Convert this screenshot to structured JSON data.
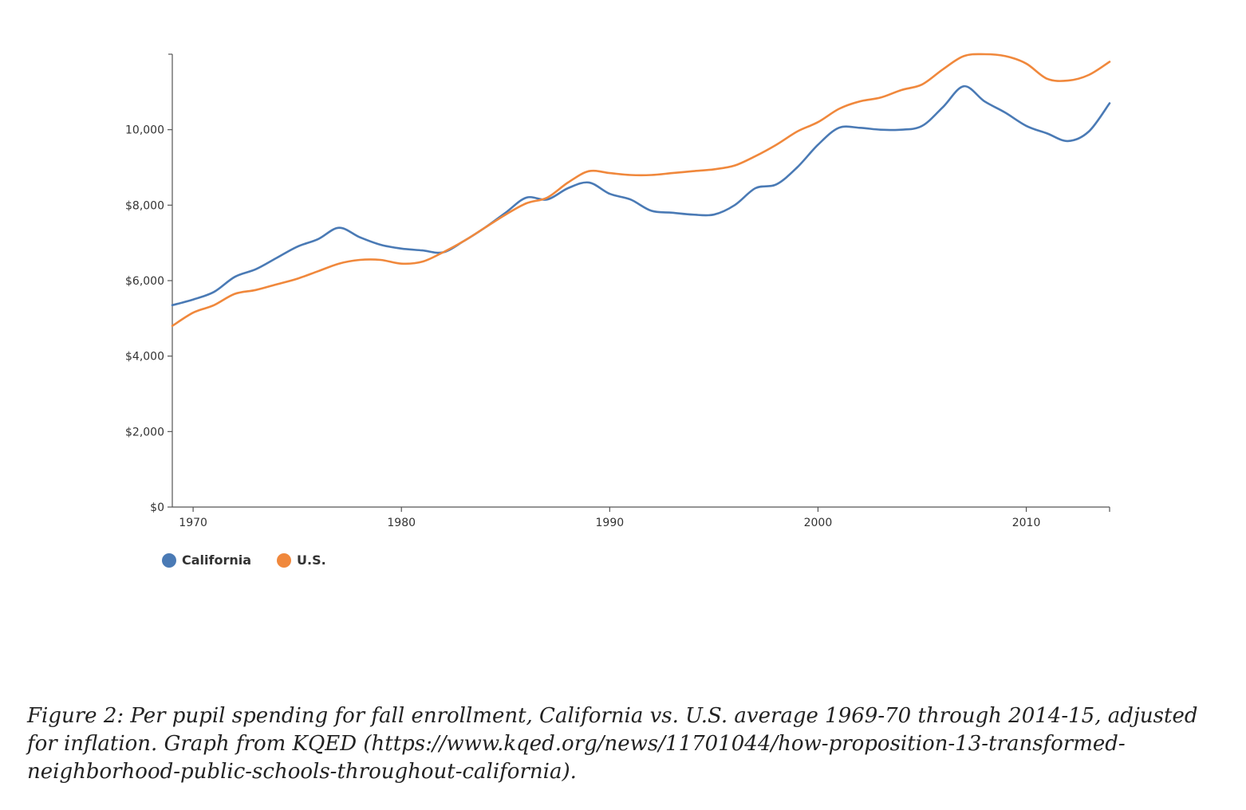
{
  "chart_data": {
    "type": "line",
    "xlim": [
      1969,
      2014
    ],
    "ylim": [
      0,
      12000
    ],
    "x_ticks": [
      1970,
      1980,
      1990,
      2000,
      2010
    ],
    "x_tick_labels": [
      "1970",
      "1980",
      "1990",
      "2000",
      "2010"
    ],
    "y_ticks": [
      0,
      2000,
      4000,
      6000,
      8000,
      10000
    ],
    "y_tick_labels": [
      "$0",
      "$2,000",
      "$4,000",
      "$6,000",
      "$8,000",
      "10,000"
    ],
    "grid": false,
    "legend_position": "bottom-left",
    "series": [
      {
        "name": "California",
        "color": "#4a7ab5",
        "x": [
          1969,
          1970,
          1971,
          1972,
          1973,
          1974,
          1975,
          1976,
          1977,
          1978,
          1979,
          1980,
          1981,
          1982,
          1983,
          1984,
          1985,
          1986,
          1987,
          1988,
          1989,
          1990,
          1991,
          1992,
          1993,
          1994,
          1995,
          1996,
          1997,
          1998,
          1999,
          2000,
          2001,
          2002,
          2003,
          2004,
          2005,
          2006,
          2007,
          2008,
          2009,
          2010,
          2011,
          2012,
          2013,
          2014
        ],
        "values": [
          5350,
          5500,
          5700,
          6100,
          6300,
          6600,
          6900,
          7100,
          7400,
          7150,
          6950,
          6850,
          6800,
          6750,
          7050,
          7400,
          7800,
          8200,
          8150,
          8450,
          8600,
          8300,
          8150,
          7850,
          7800,
          7750,
          7750,
          8000,
          8450,
          8550,
          9000,
          9600,
          10050,
          10050,
          10000,
          10000,
          10100,
          10600,
          11150,
          10750,
          10450,
          10100,
          9900,
          9700,
          9950,
          10700
        ]
      },
      {
        "name": "U.S.",
        "color": "#f0883c",
        "x": [
          1969,
          1970,
          1971,
          1972,
          1973,
          1974,
          1975,
          1976,
          1977,
          1978,
          1979,
          1980,
          1981,
          1982,
          1983,
          1984,
          1985,
          1986,
          1987,
          1988,
          1989,
          1990,
          1991,
          1992,
          1993,
          1994,
          1995,
          1996,
          1997,
          1998,
          1999,
          2000,
          2001,
          2002,
          2003,
          2004,
          2005,
          2006,
          2007,
          2008,
          2009,
          2010,
          2011,
          2012,
          2013,
          2014
        ],
        "values": [
          4800,
          5150,
          5350,
          5650,
          5750,
          5900,
          6050,
          6250,
          6450,
          6550,
          6550,
          6450,
          6500,
          6750,
          7050,
          7400,
          7750,
          8050,
          8200,
          8600,
          8900,
          8850,
          8800,
          8800,
          8850,
          8900,
          8950,
          9050,
          9300,
          9600,
          9950,
          10200,
          10550,
          10750,
          10850,
          11050,
          11200,
          11600,
          11950,
          12000,
          11950,
          11750,
          11350,
          11300,
          11450,
          11800
        ]
      }
    ]
  },
  "legend": {
    "items": [
      {
        "label": "California",
        "color": "#4a7ab5"
      },
      {
        "label": "U.S.",
        "color": "#f0883c"
      }
    ]
  },
  "caption": "Figure 2: Per pupil spending for fall enrollment, California vs. U.S. average 1969-70 through 2014-15, adjusted for inflation. Graph from KQED (https://www.kqed.org/news/11701044/how-proposition-13-transformed-neighborhood-public-schools-throughout-california)."
}
